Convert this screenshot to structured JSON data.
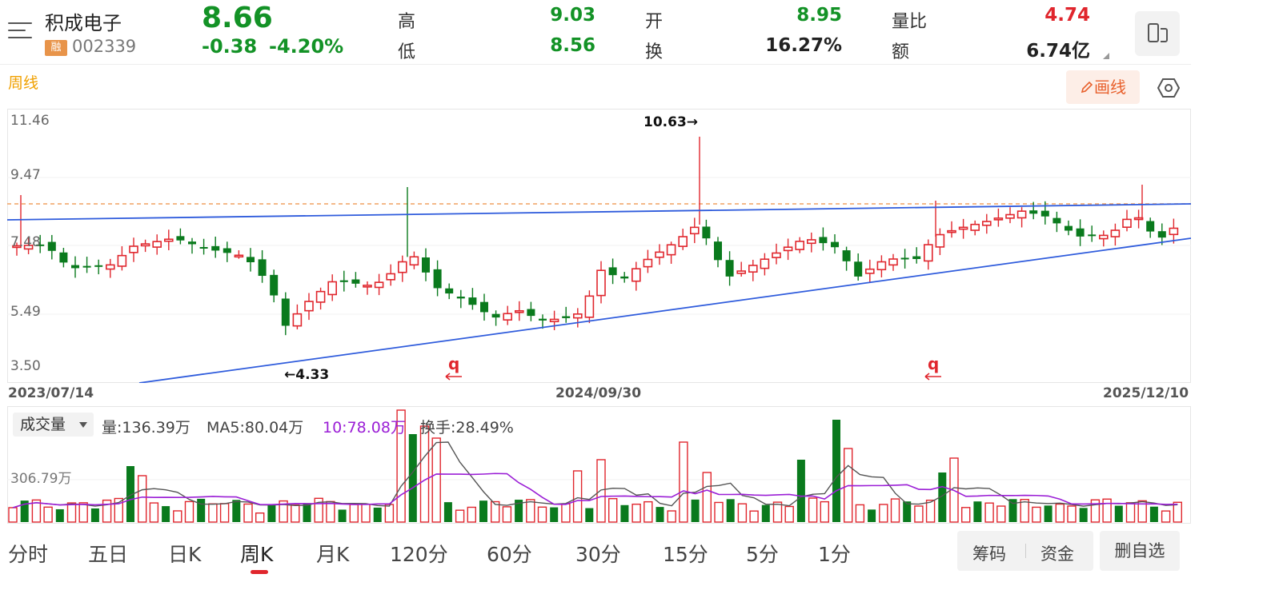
{
  "header": {
    "stock_name": "积成电子",
    "margin_badge": "融",
    "stock_code": "002339",
    "price": "8.66",
    "change": "-0.38",
    "change_pct": "-4.20%",
    "quotes": [
      {
        "label": "高",
        "value": "9.03",
        "color": "#139226"
      },
      {
        "label": "低",
        "value": "8.56",
        "color": "#139226"
      },
      {
        "label": "开",
        "value": "8.95",
        "color": "#139226"
      },
      {
        "label": "换",
        "value": "16.27%",
        "color": "#222222"
      },
      {
        "label": "量比",
        "value": "4.74",
        "color": "#e0262d"
      },
      {
        "label": "额",
        "value": "6.74亿",
        "color": "#222222"
      }
    ]
  },
  "chart_header": {
    "period_label": "周线",
    "draw_button": "画线"
  },
  "kline": {
    "y_ticks": [
      "11.46",
      "9.47",
      "7.48",
      "5.49",
      "3.50"
    ],
    "high_marker": "10.63→",
    "low_marker": "←4.33",
    "event_glyph": "q",
    "dates": [
      "2023/07/14",
      "2024/09/30",
      "2025/12/10"
    ]
  },
  "volume": {
    "selector": "成交量",
    "vol_label": "量:136.39万",
    "ma5_label": "MA5:80.04万",
    "ma10_label": "10:78.08万",
    "turnover_label": "换手:28.49%",
    "y_tick": "306.79万"
  },
  "tabs": [
    "分时",
    "五日",
    "日K",
    "周K",
    "月K",
    "120分",
    "60分",
    "30分",
    "15分",
    "5分",
    "1分"
  ],
  "active_tab": "周K",
  "buttons": {
    "chips": "筹码",
    "funds": "资金",
    "delete_watch": "删自选"
  },
  "colors": {
    "up": "#e0262d",
    "down": "#0a7a1d",
    "accent": "#e8602c",
    "trendline": "#2e5bdc",
    "resistance": "#f0a060"
  }
}
